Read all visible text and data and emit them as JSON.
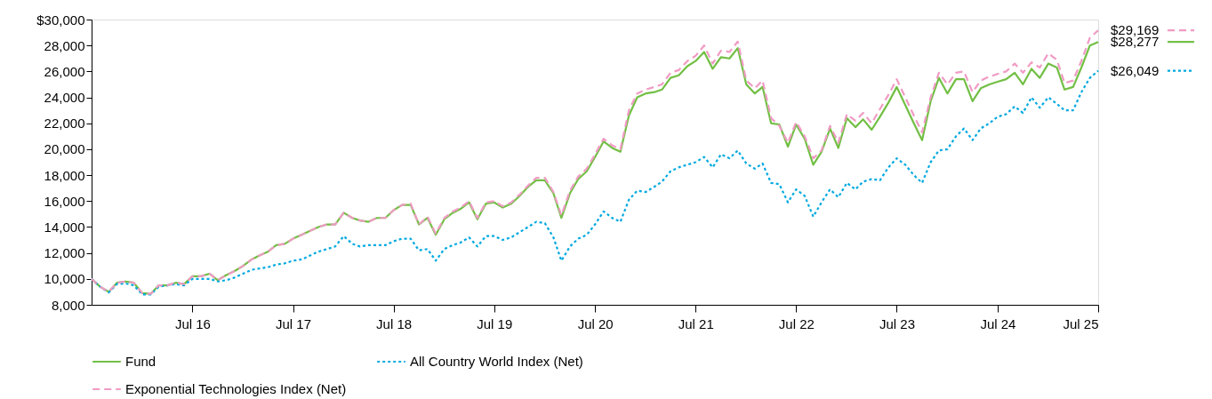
{
  "chart_data": {
    "type": "line",
    "legend": "bottom",
    "grid": false,
    "marker": "none",
    "x": [
      "2015-07",
      "2015-08",
      "2015-09",
      "2015-10",
      "2015-11",
      "2015-12",
      "2016-01",
      "2016-02",
      "2016-03",
      "2016-04",
      "2016-05",
      "2016-06",
      "2016-07",
      "2016-08",
      "2016-09",
      "2016-10",
      "2016-11",
      "2016-12",
      "2017-01",
      "2017-02",
      "2017-03",
      "2017-04",
      "2017-05",
      "2017-06",
      "2017-07",
      "2017-08",
      "2017-09",
      "2017-10",
      "2017-11",
      "2017-12",
      "2018-01",
      "2018-02",
      "2018-03",
      "2018-04",
      "2018-05",
      "2018-06",
      "2018-07",
      "2018-08",
      "2018-09",
      "2018-10",
      "2018-11",
      "2018-12",
      "2019-01",
      "2019-02",
      "2019-03",
      "2019-04",
      "2019-05",
      "2019-06",
      "2019-07",
      "2019-08",
      "2019-09",
      "2019-10",
      "2019-11",
      "2019-12",
      "2020-01",
      "2020-02",
      "2020-03",
      "2020-04",
      "2020-05",
      "2020-06",
      "2020-07",
      "2020-08",
      "2020-09",
      "2020-10",
      "2020-11",
      "2020-12",
      "2021-01",
      "2021-02",
      "2021-03",
      "2021-04",
      "2021-05",
      "2021-06",
      "2021-07",
      "2021-08",
      "2021-09",
      "2021-10",
      "2021-11",
      "2021-12",
      "2022-01",
      "2022-02",
      "2022-03",
      "2022-04",
      "2022-05",
      "2022-06",
      "2022-07",
      "2022-08",
      "2022-09",
      "2022-10",
      "2022-11",
      "2022-12",
      "2023-01",
      "2023-02",
      "2023-03",
      "2023-04",
      "2023-05",
      "2023-06",
      "2023-07",
      "2023-08",
      "2023-09",
      "2023-10",
      "2023-11",
      "2023-12",
      "2024-01",
      "2024-02",
      "2024-03",
      "2024-04",
      "2024-05",
      "2024-06",
      "2024-07",
      "2024-08",
      "2024-09",
      "2024-10",
      "2024-11",
      "2024-12",
      "2025-01",
      "2025-02",
      "2025-03",
      "2025-04",
      "2025-05",
      "2025-06",
      "2025-07"
    ],
    "series": [
      {
        "name": "Fund",
        "color": "#72bf44",
        "line_style": "solid",
        "values": [
          10000,
          9400,
          9000,
          9700,
          9800,
          9700,
          8900,
          8850,
          9500,
          9500,
          9700,
          9600,
          10200,
          10200,
          10400,
          9900,
          10300,
          10600,
          11000,
          11500,
          11800,
          12100,
          12600,
          12700,
          13100,
          13400,
          13700,
          14000,
          14200,
          14200,
          15100,
          14700,
          14500,
          14400,
          14700,
          14700,
          15300,
          15700,
          15700,
          14200,
          14700,
          13400,
          14600,
          15100,
          15400,
          15900,
          14600,
          15800,
          15900,
          15500,
          15800,
          16400,
          17100,
          17600,
          17600,
          16600,
          14700,
          16600,
          17700,
          18300,
          19400,
          20600,
          20100,
          19800,
          22600,
          24000,
          24300,
          24400,
          24600,
          25500,
          25700,
          26400,
          26800,
          27500,
          26200,
          27100,
          27000,
          27800,
          25000,
          24300,
          24800,
          22000,
          21900,
          20200,
          21900,
          20800,
          18800,
          19800,
          21600,
          20100,
          22400,
          21700,
          22300,
          21500,
          22500,
          23600,
          24800,
          23400,
          22000,
          20700,
          23700,
          25500,
          24300,
          25400,
          25400,
          23700,
          24700,
          25000,
          25200,
          25400,
          25900,
          25000,
          26200,
          25500,
          26600,
          26300,
          24600,
          24800,
          26300,
          28000,
          28277
        ],
        "value_labels": [
          null,
          null,
          null,
          null,
          null,
          null,
          null,
          null,
          null,
          null,
          null,
          null,
          null,
          null,
          null,
          null,
          null,
          null,
          null,
          null,
          null,
          null,
          null,
          null,
          null,
          null,
          null,
          null,
          null,
          null,
          null,
          null,
          null,
          null,
          null,
          null,
          null,
          null,
          null,
          null,
          null,
          null,
          null,
          null,
          null,
          null,
          null,
          null,
          null,
          null,
          null,
          null,
          null,
          null,
          null,
          null,
          null,
          null,
          null,
          null,
          null,
          null,
          null,
          null,
          null,
          null,
          null,
          null,
          null,
          null,
          null,
          null,
          null,
          null,
          null,
          null,
          null,
          null,
          null,
          null,
          null,
          null,
          null,
          null,
          null,
          null,
          null,
          null,
          null,
          null,
          null,
          null,
          null,
          null,
          null,
          null,
          null,
          null,
          null,
          null,
          null,
          null,
          null,
          null,
          null,
          null,
          null,
          null,
          null,
          null,
          null,
          null,
          null,
          null,
          null,
          null,
          null,
          null,
          null,
          null,
          "$28,277"
        ]
      },
      {
        "name": "All Country World Index (Net)",
        "color": "#00a9e0",
        "line_style": "dotted",
        "values": [
          10000,
          9400,
          8950,
          9600,
          9650,
          9500,
          8800,
          8800,
          9400,
          9500,
          9600,
          9500,
          10000,
          10000,
          10000,
          9800,
          9900,
          10100,
          10400,
          10700,
          10800,
          10900,
          11100,
          11200,
          11400,
          11500,
          11800,
          12100,
          12300,
          12500,
          13300,
          12700,
          12500,
          12600,
          12600,
          12600,
          12900,
          13100,
          13100,
          12200,
          12300,
          11400,
          12300,
          12600,
          12800,
          13200,
          12500,
          13300,
          13300,
          13000,
          13200,
          13600,
          14000,
          14400,
          14300,
          13200,
          11400,
          12500,
          13100,
          13400,
          14200,
          15200,
          14700,
          14400,
          16100,
          16800,
          16700,
          17100,
          17500,
          18300,
          18600,
          18800,
          19000,
          19400,
          18600,
          19600,
          19300,
          19900,
          18900,
          18500,
          18900,
          17400,
          17300,
          15900,
          16900,
          16400,
          14800,
          15900,
          16900,
          16300,
          17400,
          16900,
          17500,
          17700,
          17600,
          18600,
          19300,
          18800,
          18000,
          17400,
          19000,
          19900,
          20000,
          21000,
          21600,
          20700,
          21600,
          22000,
          22500,
          22700,
          23300,
          22800,
          24000,
          23200,
          24000,
          23500,
          23000,
          23000,
          24400,
          25500,
          26049
        ],
        "value_labels": [
          null,
          null,
          null,
          null,
          null,
          null,
          null,
          null,
          null,
          null,
          null,
          null,
          null,
          null,
          null,
          null,
          null,
          null,
          null,
          null,
          null,
          null,
          null,
          null,
          null,
          null,
          null,
          null,
          null,
          null,
          null,
          null,
          null,
          null,
          null,
          null,
          null,
          null,
          null,
          null,
          null,
          null,
          null,
          null,
          null,
          null,
          null,
          null,
          null,
          null,
          null,
          null,
          null,
          null,
          null,
          null,
          null,
          null,
          null,
          null,
          null,
          null,
          null,
          null,
          null,
          null,
          null,
          null,
          null,
          null,
          null,
          null,
          null,
          null,
          null,
          null,
          null,
          null,
          null,
          null,
          null,
          null,
          null,
          null,
          null,
          null,
          null,
          null,
          null,
          null,
          null,
          null,
          null,
          null,
          null,
          null,
          null,
          null,
          null,
          null,
          null,
          null,
          null,
          null,
          null,
          null,
          null,
          null,
          null,
          null,
          null,
          null,
          null,
          null,
          null,
          null,
          null,
          null,
          null,
          null,
          "$26,049"
        ]
      },
      {
        "name": "Exponential Technologies Index (Net)",
        "color": "#f09bc4",
        "line_style": "dashed",
        "values": [
          10000,
          9400,
          9000,
          9700,
          9800,
          9700,
          8900,
          8850,
          9500,
          9500,
          9700,
          9600,
          10200,
          10200,
          10400,
          9900,
          10300,
          10600,
          11000,
          11500,
          11800,
          12100,
          12600,
          12700,
          13100,
          13400,
          13700,
          14000,
          14200,
          14200,
          15100,
          14700,
          14500,
          14400,
          14700,
          14700,
          15300,
          15700,
          15800,
          14200,
          14800,
          13500,
          14700,
          15200,
          15500,
          16000,
          14700,
          15900,
          16000,
          15600,
          15900,
          16500,
          17200,
          17800,
          17800,
          16700,
          14900,
          16800,
          17900,
          18500,
          19600,
          20800,
          20300,
          20000,
          23000,
          24300,
          24600,
          24800,
          25000,
          25900,
          26100,
          26800,
          27200,
          28000,
          26600,
          27600,
          27500,
          28300,
          25300,
          24700,
          25300,
          22400,
          21800,
          20500,
          22100,
          21000,
          19300,
          19900,
          21800,
          20500,
          22700,
          22200,
          22800,
          22000,
          23100,
          24200,
          25400,
          24000,
          22600,
          21300,
          24000,
          25900,
          25000,
          25900,
          26000,
          24400,
          25300,
          25600,
          25800,
          26000,
          26600,
          25900,
          26700,
          26300,
          27400,
          26900,
          25100,
          25300,
          26800,
          28600,
          29169
        ],
        "value_labels": [
          null,
          null,
          null,
          null,
          null,
          null,
          null,
          null,
          null,
          null,
          null,
          null,
          null,
          null,
          null,
          null,
          null,
          null,
          null,
          null,
          null,
          null,
          null,
          null,
          null,
          null,
          null,
          null,
          null,
          null,
          null,
          null,
          null,
          null,
          null,
          null,
          null,
          null,
          null,
          null,
          null,
          null,
          null,
          null,
          null,
          null,
          null,
          null,
          null,
          null,
          null,
          null,
          null,
          null,
          null,
          null,
          null,
          null,
          null,
          null,
          null,
          null,
          null,
          null,
          null,
          null,
          null,
          null,
          null,
          null,
          null,
          null,
          null,
          null,
          null,
          null,
          null,
          null,
          null,
          null,
          null,
          null,
          null,
          null,
          null,
          null,
          null,
          null,
          null,
          null,
          null,
          null,
          null,
          null,
          null,
          null,
          null,
          null,
          null,
          null,
          null,
          null,
          null,
          null,
          null,
          null,
          null,
          null,
          null,
          null,
          null,
          null,
          null,
          null,
          null,
          null,
          null,
          null,
          null,
          null,
          "$29,169"
        ]
      }
    ],
    "xlim": [
      "2015-07",
      "2025-07"
    ],
    "xticks": [
      {
        "value": "2016-07",
        "label": "Jul 16"
      },
      {
        "value": "2017-07",
        "label": "Jul 17"
      },
      {
        "value": "2018-07",
        "label": "Jul 18"
      },
      {
        "value": "2019-07",
        "label": "Jul 19"
      },
      {
        "value": "2020-07",
        "label": "Jul 20"
      },
      {
        "value": "2021-07",
        "label": "Jul 21"
      },
      {
        "value": "2022-07",
        "label": "Jul 22"
      },
      {
        "value": "2023-07",
        "label": "Jul 23"
      },
      {
        "value": "2024-07",
        "label": "Jul 24"
      },
      {
        "value": "2025-07",
        "label": "Jul 25"
      }
    ],
    "ylim": [
      8000,
      30000
    ],
    "yticks": [
      {
        "value": 8000,
        "label": "8,000"
      },
      {
        "value": 10000,
        "label": "10,000"
      },
      {
        "value": 12000,
        "label": "12,000"
      },
      {
        "value": 14000,
        "label": "14,000"
      },
      {
        "value": 16000,
        "label": "16,000"
      },
      {
        "value": 18000,
        "label": "18,000"
      },
      {
        "value": 20000,
        "label": "20,000"
      },
      {
        "value": 22000,
        "label": "22,000"
      },
      {
        "value": 24000,
        "label": "24,000"
      },
      {
        "value": 26000,
        "label": "26,000"
      },
      {
        "value": 28000,
        "label": "28,000"
      },
      {
        "value": 30000,
        "label": "$30,000"
      }
    ]
  }
}
